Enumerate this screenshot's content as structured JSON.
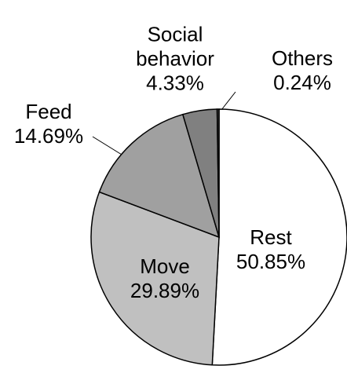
{
  "chart_data": {
    "type": "pie",
    "categories": [
      "Rest",
      "Move",
      "Feed",
      "Social behavior",
      "Others"
    ],
    "values": [
      50.85,
      29.89,
      14.69,
      4.33,
      0.24
    ],
    "value_labels": [
      "50.85%",
      "29.89%",
      "14.69%",
      "4.33%",
      "0.24%"
    ],
    "colors": [
      "#ffffff",
      "#c0c0c0",
      "#a0a0a0",
      "#808080",
      "#404040"
    ]
  }
}
